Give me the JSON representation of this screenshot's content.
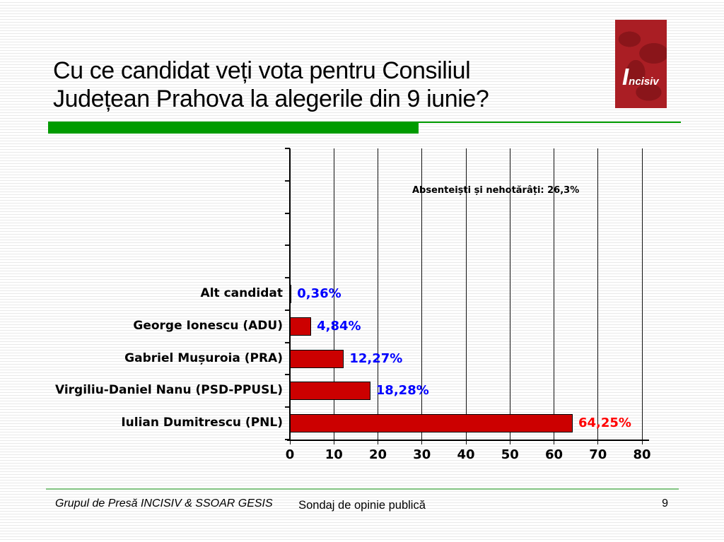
{
  "slide": {
    "title_line1": "Cu ce candidat veți vota pentru Consiliul",
    "title_line2": "Județean Prahova la alegerile din 9 iunie?"
  },
  "logo": {
    "name": "Incisiv",
    "initial": "I",
    "rest": "ncisiv",
    "bg_color": "#AA1E24"
  },
  "accent_colors": {
    "title_underline_green": "#009B00",
    "footer_line_green": "#82C382"
  },
  "chart_data": {
    "type": "bar",
    "orientation": "horizontal",
    "title": "",
    "xlabel": "",
    "ylabel": "",
    "categories": [
      "Alt candidat",
      "George Ionescu (ADU)",
      "Gabriel Mușuroia (PRA)",
      "Virgiliu-Daniel Nanu (PSD-PPUSL)",
      "Iulian Dumitrescu (PNL)"
    ],
    "values": [
      0.36,
      4.84,
      12.27,
      18.28,
      64.25
    ],
    "value_labels": [
      "0,36%",
      "4,84%",
      "12,27%",
      "18,28%",
      "64,25%"
    ],
    "value_label_colors": [
      "#0000FF",
      "#0000FF",
      "#0000FF",
      "#0000FF",
      "#FF0000"
    ],
    "bar_color": "#CC0000",
    "bar_border_color": "#000000",
    "annotation": "Absenteiști și nehotărâți: 26,3%",
    "xlim": [
      0,
      80
    ],
    "x_ticks": [
      "0",
      "10",
      "20",
      "30",
      "40",
      "50",
      "60",
      "70",
      "80"
    ],
    "grid": true,
    "legend": false
  },
  "footer": {
    "left": "Grupul de Presă INCISIV & SSOAR GESIS",
    "center": "Sondaj de opinie publică",
    "page_number": "9"
  }
}
